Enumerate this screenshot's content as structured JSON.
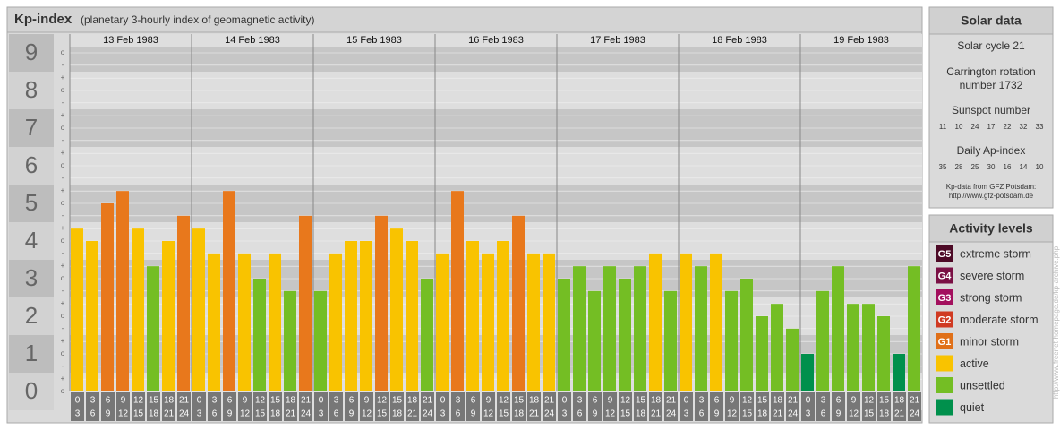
{
  "chart_data": {
    "type": "bar",
    "title": "Kp-index",
    "subtitle": "(planetary 3-hourly index of geomagnetic activity)",
    "dates": [
      "13 Feb 1983",
      "14 Feb 1983",
      "15 Feb 1983",
      "16 Feb 1983",
      "17 Feb 1983",
      "18 Feb 1983",
      "19 Feb 1983"
    ],
    "categories": [
      [
        "0",
        "3"
      ],
      [
        "3",
        "6"
      ],
      [
        "6",
        "9"
      ],
      [
        "9",
        "12"
      ],
      [
        "12",
        "15"
      ],
      [
        "15",
        "18"
      ],
      [
        "18",
        "21"
      ],
      [
        "21",
        "24"
      ],
      [
        "0",
        "3"
      ],
      [
        "3",
        "6"
      ],
      [
        "6",
        "9"
      ],
      [
        "9",
        "12"
      ],
      [
        "12",
        "15"
      ],
      [
        "15",
        "18"
      ],
      [
        "18",
        "21"
      ],
      [
        "21",
        "24"
      ],
      [
        "0",
        "3"
      ],
      [
        "3",
        "6"
      ],
      [
        "6",
        "9"
      ],
      [
        "9",
        "12"
      ],
      [
        "12",
        "15"
      ],
      [
        "15",
        "18"
      ],
      [
        "18",
        "21"
      ],
      [
        "21",
        "24"
      ],
      [
        "0",
        "3"
      ],
      [
        "3",
        "6"
      ],
      [
        "6",
        "9"
      ],
      [
        "9",
        "12"
      ],
      [
        "12",
        "15"
      ],
      [
        "15",
        "18"
      ],
      [
        "18",
        "21"
      ],
      [
        "21",
        "24"
      ],
      [
        "0",
        "3"
      ],
      [
        "3",
        "6"
      ],
      [
        "6",
        "9"
      ],
      [
        "9",
        "12"
      ],
      [
        "12",
        "15"
      ],
      [
        "15",
        "18"
      ],
      [
        "18",
        "21"
      ],
      [
        "21",
        "24"
      ],
      [
        "0",
        "3"
      ],
      [
        "3",
        "6"
      ],
      [
        "6",
        "9"
      ],
      [
        "9",
        "12"
      ],
      [
        "12",
        "15"
      ],
      [
        "15",
        "18"
      ],
      [
        "18",
        "21"
      ],
      [
        "21",
        "24"
      ],
      [
        "0",
        "3"
      ],
      [
        "3",
        "6"
      ],
      [
        "6",
        "9"
      ],
      [
        "9",
        "12"
      ],
      [
        "12",
        "15"
      ],
      [
        "15",
        "18"
      ],
      [
        "18",
        "21"
      ],
      [
        "21",
        "24"
      ]
    ],
    "values": [
      4.33,
      4,
      5,
      5.33,
      4.33,
      3.33,
      4,
      4.67,
      4.33,
      3.67,
      5.33,
      3.67,
      3,
      3.67,
      2.67,
      4.67,
      2.67,
      3.67,
      4,
      4,
      4.67,
      4.33,
      4,
      3,
      3.67,
      5.33,
      4,
      3.67,
      4,
      4.67,
      3.67,
      3.67,
      3,
      3.33,
      2.67,
      3.33,
      3,
      3.33,
      3.67,
      2.67,
      3.67,
      3.33,
      3.67,
      2.67,
      3,
      2,
      2.33,
      1.67,
      1,
      2.67,
      3.33,
      2.33,
      2.33,
      2,
      1,
      3.33
    ],
    "colors": [
      "#f9c300",
      "#f9c300",
      "#e8781c",
      "#e8781c",
      "#f9c300",
      "#74be24",
      "#f9c300",
      "#e8781c",
      "#f9c300",
      "#f9c300",
      "#e8781c",
      "#f9c300",
      "#74be24",
      "#f9c300",
      "#74be24",
      "#e8781c",
      "#74be24",
      "#f9c300",
      "#f9c300",
      "#f9c300",
      "#e8781c",
      "#f9c300",
      "#f9c300",
      "#74be24",
      "#f9c300",
      "#e8781c",
      "#f9c300",
      "#f9c300",
      "#f9c300",
      "#e8781c",
      "#f9c300",
      "#f9c300",
      "#74be24",
      "#74be24",
      "#74be24",
      "#74be24",
      "#74be24",
      "#74be24",
      "#f9c300",
      "#74be24",
      "#f9c300",
      "#74be24",
      "#f9c300",
      "#74be24",
      "#74be24",
      "#74be24",
      "#74be24",
      "#74be24",
      "#00904c",
      "#74be24",
      "#74be24",
      "#74be24",
      "#74be24",
      "#74be24",
      "#00904c",
      "#74be24"
    ],
    "ylim": [
      0,
      9
    ],
    "yticks": [
      0,
      1,
      2,
      3,
      4,
      5,
      6,
      7,
      8,
      9
    ],
    "minor_yticks": [
      {
        "value": 0,
        "label": "o"
      },
      {
        "value": 0.33,
        "label": "+"
      },
      {
        "value": 0.67,
        "label": "-"
      },
      {
        "value": 1,
        "label": "o"
      },
      {
        "value": 1.33,
        "label": "+"
      },
      {
        "value": 1.67,
        "label": "-"
      },
      {
        "value": 2,
        "label": "o"
      },
      {
        "value": 2.33,
        "label": "+"
      },
      {
        "value": 2.67,
        "label": "-"
      },
      {
        "value": 3,
        "label": "o"
      },
      {
        "value": 3.33,
        "label": "+"
      },
      {
        "value": 3.67,
        "label": "-"
      },
      {
        "value": 4,
        "label": "o"
      },
      {
        "value": 4.33,
        "label": "+"
      },
      {
        "value": 4.67,
        "label": "-"
      },
      {
        "value": 5,
        "label": "o"
      },
      {
        "value": 5.33,
        "label": "+"
      },
      {
        "value": 5.67,
        "label": "-"
      },
      {
        "value": 6,
        "label": "o"
      },
      {
        "value": 6.33,
        "label": "+"
      },
      {
        "value": 6.67,
        "label": "-"
      },
      {
        "value": 7,
        "label": "o"
      },
      {
        "value": 7.33,
        "label": "+"
      },
      {
        "value": 7.67,
        "label": "-"
      },
      {
        "value": 8,
        "label": "o"
      },
      {
        "value": 8.33,
        "label": "+"
      },
      {
        "value": 8.67,
        "label": "-"
      },
      {
        "value": 9,
        "label": "o"
      }
    ]
  },
  "solar_data": {
    "title": "Solar data",
    "cycle": "Solar cycle 21",
    "rotation": [
      "Carrington rotation",
      "number 1732"
    ],
    "sunspot_title": "Sunspot number",
    "sunspot": [
      "11",
      "10",
      "24",
      "17",
      "22",
      "32",
      "33"
    ],
    "ap_title": "Daily Ap-index",
    "ap": [
      "35",
      "28",
      "25",
      "30",
      "16",
      "14",
      "10"
    ],
    "credit": [
      "Kp-data from GFZ Potsdam:",
      "http://www.gfz-potsdam.de"
    ]
  },
  "activity_levels": {
    "title": "Activity levels",
    "items": [
      {
        "badge": "G5",
        "label": "extreme storm",
        "color": "#4d0a26"
      },
      {
        "badge": "G4",
        "label": "severe storm",
        "color": "#7a1044"
      },
      {
        "badge": "G3",
        "label": "strong storm",
        "color": "#a3105e"
      },
      {
        "badge": "G2",
        "label": "moderate storm",
        "color": "#d03a22"
      },
      {
        "badge": "G1",
        "label": "minor storm",
        "color": "#e07018"
      },
      {
        "badge": null,
        "label": "active",
        "color": "#f9c300"
      },
      {
        "badge": null,
        "label": "unsettled",
        "color": "#74be24"
      },
      {
        "badge": null,
        "label": "quiet",
        "color": "#00904c"
      }
    ]
  },
  "watermark": "http://www.freenet-homepage.de/kp-archive.php"
}
